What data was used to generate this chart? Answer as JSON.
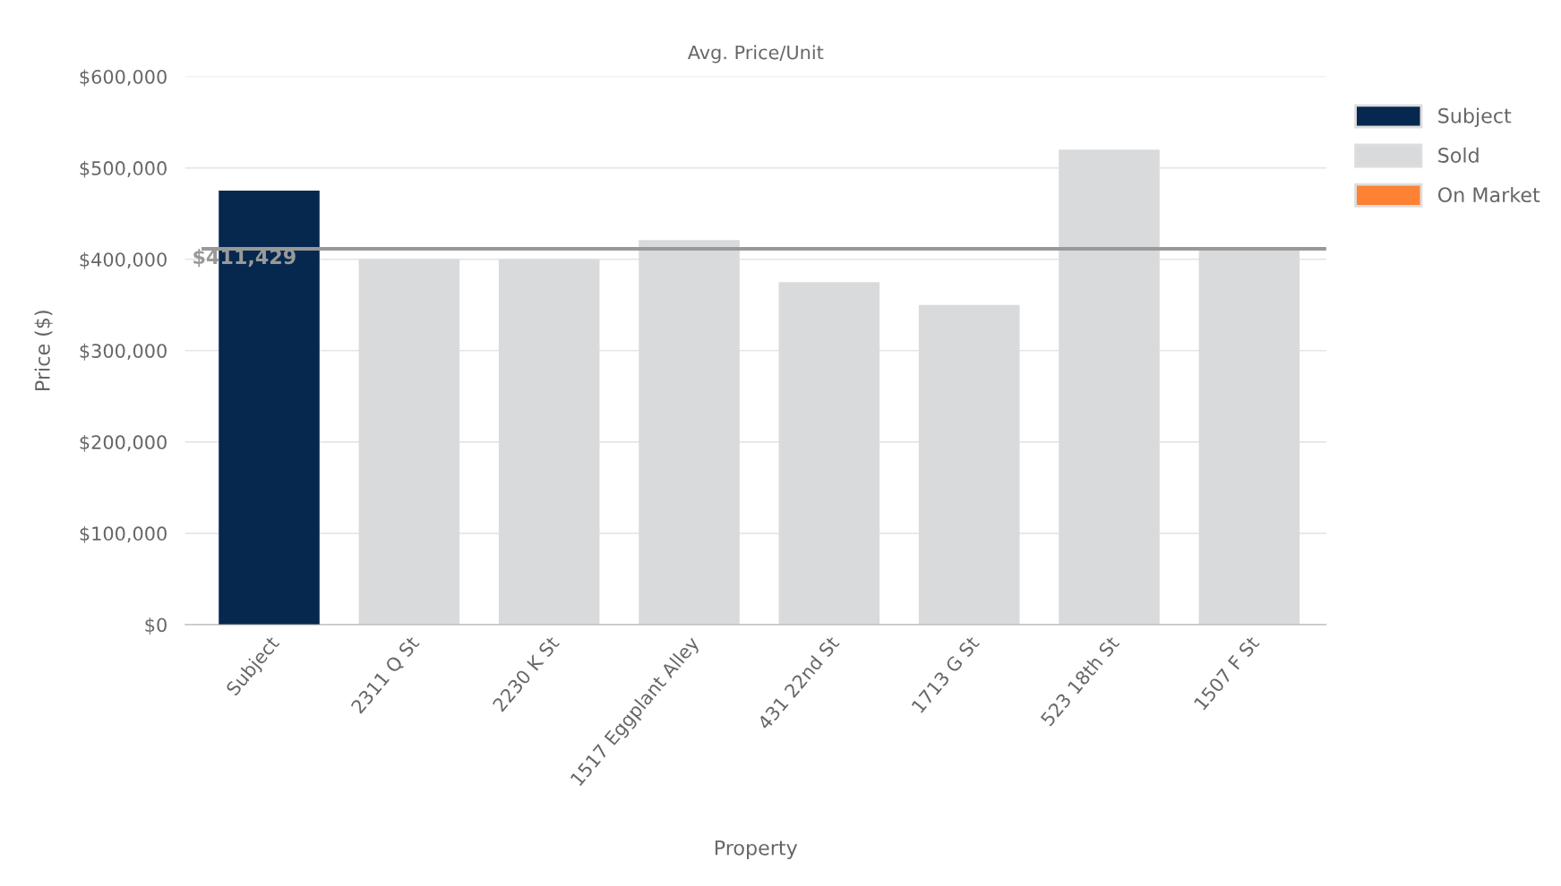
{
  "chart_data": {
    "type": "bar",
    "title": "Avg. Price/Unit",
    "xlabel": "Property",
    "ylabel": "Price ($)",
    "categories": [
      "Subject",
      "2311 Q St",
      "2230 K St",
      "1517 Eggplant Alley",
      "431 22nd St",
      "1713 G St",
      "523 18th St",
      "1507 F St"
    ],
    "series": [
      {
        "name": "Subject",
        "color": "#06284f",
        "values": [
          475000,
          null,
          null,
          null,
          null,
          null,
          null,
          null
        ]
      },
      {
        "name": "Sold",
        "color": "#d9dadb",
        "values": [
          null,
          400000,
          400000,
          421000,
          375000,
          350000,
          520000,
          410000
        ]
      },
      {
        "name": "On Market",
        "color": "#fe8233",
        "values": [
          null,
          null,
          null,
          null,
          null,
          null,
          null,
          null
        ]
      }
    ],
    "ylim": [
      0,
      600000
    ],
    "yticks": [
      {
        "value": 0,
        "label": "$0"
      },
      {
        "value": 100000,
        "label": "$100,000"
      },
      {
        "value": 200000,
        "label": "$200,000"
      },
      {
        "value": 300000,
        "label": "$300,000"
      },
      {
        "value": 400000,
        "label": "$400,000"
      },
      {
        "value": 500000,
        "label": "$500,000"
      },
      {
        "value": 600000,
        "label": "$600,000"
      }
    ],
    "ref_lines": [
      {
        "axis": "y",
        "value": 411429,
        "label": "$411,429",
        "color": "#999999"
      }
    ],
    "grid": "y",
    "legend": "top right"
  }
}
